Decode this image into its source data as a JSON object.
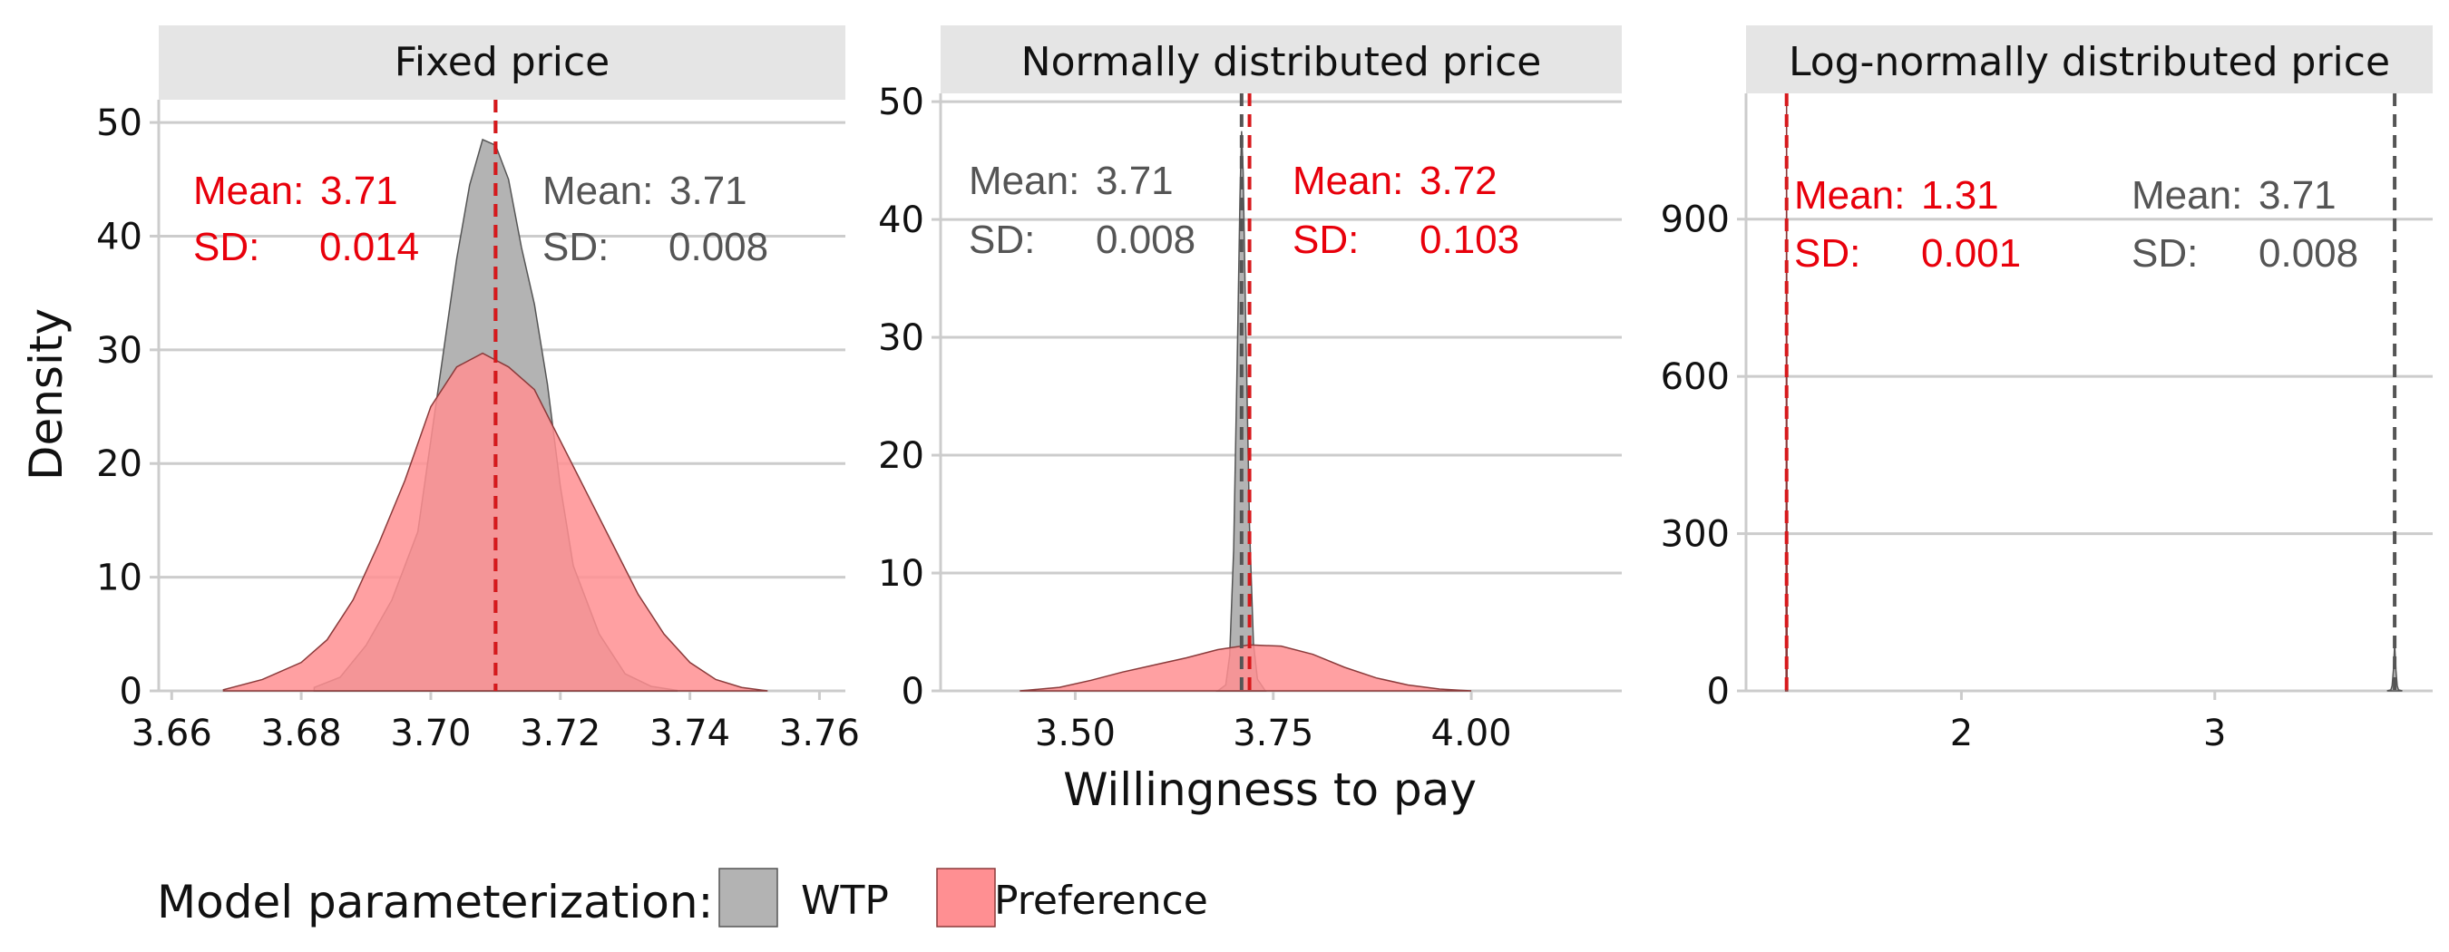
{
  "colors": {
    "wtp_fill": "#b3b3b3",
    "wtp_line": "#555555",
    "wtp_mean_line": "#555555",
    "pref_fill": "#ff8f92",
    "pref_line": "#8a3a3a",
    "pref_mean_line": "#d7191c",
    "pref_text": "#e8000b",
    "wtp_text": "#555555",
    "strip_bg": "#e5e5e5",
    "grid": "#cccccc",
    "axis": "#cccccc"
  },
  "chart_data": [
    {
      "type": "area",
      "facet_label": "Fixed price",
      "xlim": [
        3.658,
        3.764
      ],
      "ylim": [
        0,
        52
      ],
      "x_ticks": [
        3.66,
        3.68,
        3.7,
        3.72,
        3.74,
        3.76
      ],
      "x_tick_labels": [
        "3.66",
        "3.68",
        "3.70",
        "3.72",
        "3.74",
        "3.76"
      ],
      "y_ticks": [
        0,
        10,
        20,
        30,
        40,
        50
      ],
      "y_tick_labels": [
        "0",
        "10",
        "20",
        "30",
        "40",
        "50"
      ],
      "series": [
        {
          "name": "WTP",
          "x": [
            3.682,
            3.686,
            3.69,
            3.694,
            3.698,
            3.7,
            3.702,
            3.704,
            3.706,
            3.708,
            3.71,
            3.712,
            3.714,
            3.716,
            3.718,
            3.72,
            3.722,
            3.726,
            3.73,
            3.734,
            3.738
          ],
          "y": [
            0.3,
            1.2,
            4.0,
            8.0,
            14.0,
            22.0,
            30.0,
            38.0,
            44.5,
            48.5,
            48.0,
            45.0,
            39.0,
            34.0,
            27.0,
            18.0,
            11.0,
            5.0,
            1.5,
            0.4,
            0.05
          ],
          "mean": 3.71,
          "sd": 0.008
        },
        {
          "name": "Preference",
          "x": [
            3.668,
            3.674,
            3.68,
            3.684,
            3.688,
            3.692,
            3.696,
            3.7,
            3.704,
            3.708,
            3.712,
            3.716,
            3.72,
            3.724,
            3.728,
            3.732,
            3.736,
            3.74,
            3.744,
            3.748,
            3.752
          ],
          "y": [
            0.1,
            1.0,
            2.5,
            4.5,
            8.0,
            13.0,
            18.5,
            25.0,
            28.5,
            29.7,
            28.5,
            26.5,
            22.0,
            17.5,
            13.0,
            8.5,
            5.0,
            2.5,
            1.0,
            0.3,
            0.0
          ],
          "mean": 3.71,
          "sd": 0.014
        }
      ],
      "annotations": {
        "pref": {
          "mean_label": "Mean:",
          "mean_value": "3.71",
          "sd_label": "SD:",
          "sd_value": "0.014"
        },
        "wtp": {
          "mean_label": "Mean:",
          "mean_value": "3.71",
          "sd_label": "SD:",
          "sd_value": "0.008"
        }
      }
    },
    {
      "type": "area",
      "facet_label": "Normally distributed price",
      "xlim": [
        3.33,
        4.19
      ],
      "ylim": [
        0,
        50.7
      ],
      "x_ticks": [
        3.5,
        3.75,
        4.0
      ],
      "x_tick_labels": [
        "3.50",
        "3.75",
        "4.00"
      ],
      "y_ticks": [
        0,
        10,
        20,
        30,
        40,
        50
      ],
      "y_tick_labels": [
        "0",
        "10",
        "20",
        "30",
        "40",
        "50"
      ],
      "series": [
        {
          "name": "WTP",
          "x": [
            3.68,
            3.69,
            3.695,
            3.7,
            3.705,
            3.708,
            3.71,
            3.712,
            3.715,
            3.72,
            3.725,
            3.73,
            3.74
          ],
          "y": [
            0.0,
            0.5,
            3.0,
            12.0,
            30.0,
            42.0,
            47.5,
            44.0,
            32.0,
            14.0,
            4.0,
            1.0,
            0.0
          ],
          "mean": 3.71,
          "sd": 0.008
        },
        {
          "name": "Preference",
          "x": [
            3.43,
            3.48,
            3.52,
            3.56,
            3.6,
            3.64,
            3.68,
            3.72,
            3.76,
            3.8,
            3.84,
            3.88,
            3.92,
            3.96,
            4.0
          ],
          "y": [
            0.0,
            0.3,
            0.9,
            1.6,
            2.2,
            2.8,
            3.5,
            3.9,
            3.8,
            3.1,
            2.0,
            1.1,
            0.5,
            0.15,
            0.0
          ],
          "mean": 3.72,
          "sd": 0.103
        }
      ],
      "annotations": {
        "wtp": {
          "mean_label": "Mean:",
          "mean_value": "3.71",
          "sd_label": "SD:",
          "sd_value": "0.008"
        },
        "pref": {
          "mean_label": "Mean:",
          "mean_value": "3.72",
          "sd_label": "SD:",
          "sd_value": "0.103"
        }
      }
    },
    {
      "type": "area",
      "facet_label": "Log-normally distributed price",
      "xlim": [
        1.15,
        3.86
      ],
      "ylim": [
        0,
        1140
      ],
      "x_ticks": [
        2,
        3
      ],
      "x_tick_labels": [
        "2",
        "3"
      ],
      "y_ticks": [
        0,
        300,
        600,
        900
      ],
      "y_tick_labels": [
        "0",
        "300",
        "600",
        "900"
      ],
      "series": [
        {
          "name": "WTP",
          "x": [
            3.68,
            3.695,
            3.7,
            3.705,
            3.71,
            3.715,
            3.72,
            3.725,
            3.74
          ],
          "y": [
            0,
            2,
            10,
            40,
            90,
            40,
            10,
            2,
            0
          ],
          "mean": 3.71,
          "sd": 0.008
        },
        {
          "name": "Preference",
          "x": [
            1.306,
            1.308,
            1.31,
            1.312,
            1.314
          ],
          "y": [
            0,
            20,
            1140,
            20,
            0
          ],
          "mean": 1.31,
          "sd": 0.001
        }
      ],
      "annotations": {
        "pref": {
          "mean_label": "Mean:",
          "mean_value": "1.31",
          "sd_label": "SD:",
          "sd_value": "0.001"
        },
        "wtp": {
          "mean_label": "Mean:",
          "mean_value": "3.71",
          "sd_label": "SD:",
          "sd_value": "0.008"
        }
      }
    }
  ],
  "axes": {
    "ylabel": "Density",
    "xlabel": "Willingness to pay"
  },
  "legend": {
    "title": "Model parameterization:",
    "position": "bottom",
    "items": [
      {
        "label": "WTP"
      },
      {
        "label": "Preference"
      }
    ]
  }
}
